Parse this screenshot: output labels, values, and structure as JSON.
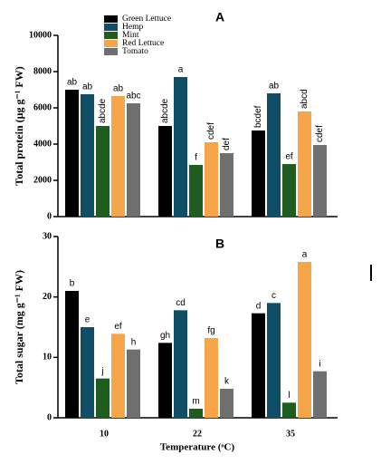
{
  "chart_data": [
    {
      "type": "bar",
      "title": "A",
      "y_label": "Total protein (μg g⁻¹ FW)",
      "categories": [
        null,
        null,
        null
      ],
      "ylim": [
        0,
        10000
      ],
      "yticks": [
        0,
        2000,
        4000,
        6000,
        8000,
        10000
      ],
      "legend": true,
      "series": [
        {
          "name": "Green Lettuce",
          "color": "#000000",
          "values": [
            7000,
            5000,
            4750
          ],
          "labels": [
            "ab",
            "abcde",
            "bcdef"
          ]
        },
        {
          "name": "Hemp",
          "color": "#0f4f66",
          "values": [
            6750,
            7700,
            6800
          ],
          "labels": [
            "ab",
            "a",
            "ab"
          ]
        },
        {
          "name": "Mint",
          "color": "#1e5c1f",
          "values": [
            5000,
            2850,
            2900
          ],
          "labels": [
            "abcde",
            "f",
            "ef"
          ]
        },
        {
          "name": "Red Lettuce",
          "color": "#f6a549",
          "values": [
            6650,
            4100,
            5800
          ],
          "labels": [
            "ab",
            "cdef",
            "abcd"
          ]
        },
        {
          "name": "Tomato",
          "color": "#6f6f6f",
          "values": [
            6250,
            3500,
            3950
          ],
          "labels": [
            "abc",
            "def",
            "cdef"
          ]
        }
      ]
    },
    {
      "type": "bar",
      "title": "B",
      "y_label": "Total sugar (mg g⁻¹ FW)",
      "x_label": "Temperature (ᵒC)",
      "categories": [
        "10",
        "22",
        "35"
      ],
      "ylim": [
        0,
        30
      ],
      "yticks": [
        0,
        10,
        20,
        30
      ],
      "legend": false,
      "series": [
        {
          "name": "Green Lettuce",
          "color": "#000000",
          "values": [
            21,
            12.4,
            17.3
          ],
          "labels": [
            "b",
            "gh",
            "d"
          ]
        },
        {
          "name": "Hemp",
          "color": "#0f4f66",
          "values": [
            15,
            17.8,
            19
          ],
          "labels": [
            "e",
            "cd",
            "c"
          ]
        },
        {
          "name": "Mint",
          "color": "#1e5c1f",
          "values": [
            6.5,
            1.5,
            2.5
          ],
          "labels": [
            "j",
            "m",
            "l"
          ]
        },
        {
          "name": "Red Lettuce",
          "color": "#f6a549",
          "values": [
            13.9,
            13.2,
            25.8
          ],
          "labels": [
            "ef",
            "fg",
            "a"
          ]
        },
        {
          "name": "Tomato",
          "color": "#6f6f6f",
          "values": [
            11.3,
            4.8,
            7.7
          ],
          "labels": [
            "h",
            "k",
            "i"
          ]
        }
      ]
    }
  ]
}
